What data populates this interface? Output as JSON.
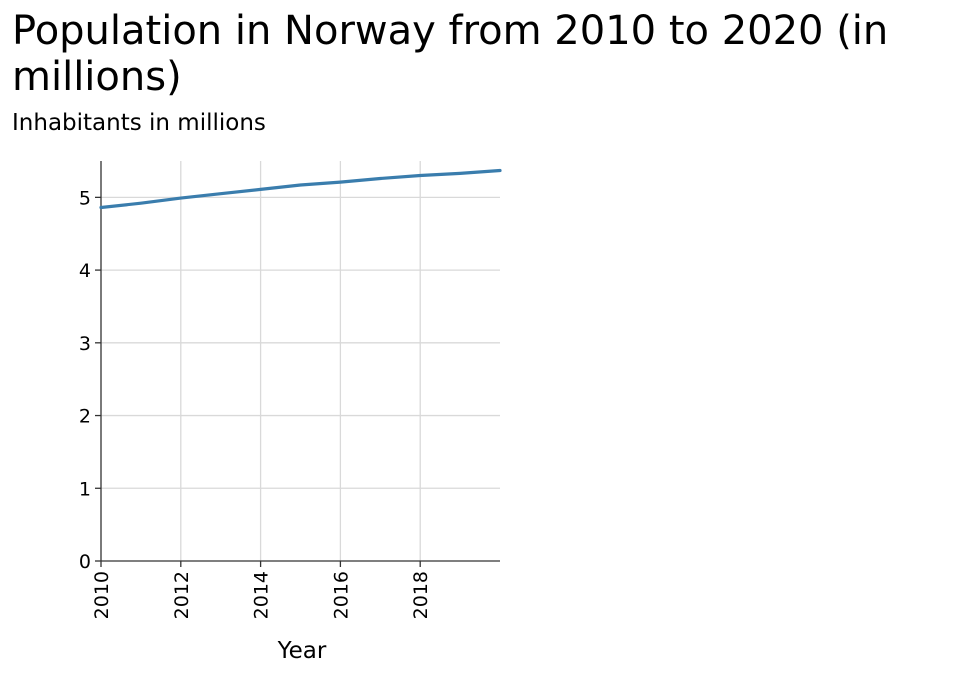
{
  "chart_data": {
    "type": "line",
    "title": "Population in Norway from 2010 to 2020 (in millions)",
    "xlabel": "Year",
    "ylabel": "Inhabitants in millions",
    "xlim": [
      2010,
      2020
    ],
    "ylim": [
      0,
      5.5
    ],
    "x_ticks": [
      "2010",
      "2012",
      "2014",
      "2016",
      "2018"
    ],
    "y_ticks": [
      "0",
      "1",
      "2",
      "3",
      "4",
      "5"
    ],
    "grid": true,
    "series": [
      {
        "color": "#3a7dad",
        "x": [
          2010,
          2011,
          2012,
          2013,
          2014,
          2015,
          2016,
          2017,
          2018,
          2019,
          2020
        ],
        "y": [
          4.86,
          4.92,
          4.99,
          5.05,
          5.11,
          5.17,
          5.21,
          5.26,
          5.3,
          5.33,
          5.37
        ]
      }
    ]
  }
}
